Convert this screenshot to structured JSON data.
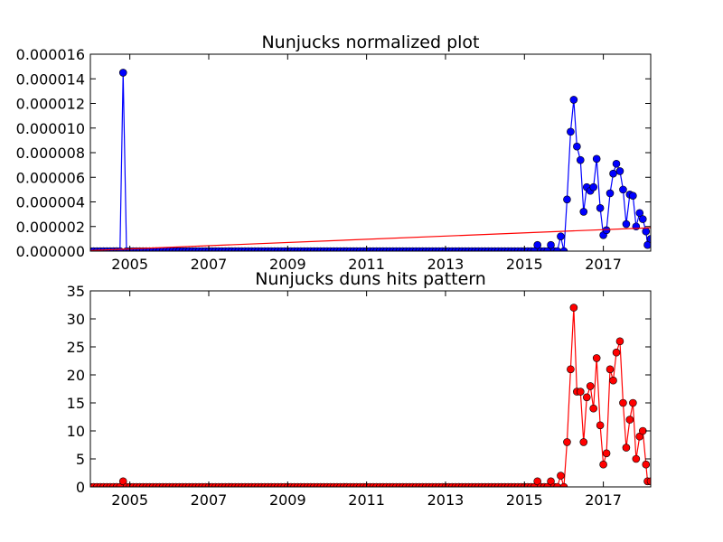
{
  "chart_data": [
    {
      "type": "line",
      "title": "Nunjucks normalized plot",
      "xlabel": "",
      "ylabel": "",
      "xlim": [
        2004.0,
        2018.2
      ],
      "ylim": [
        0,
        1.6e-05
      ],
      "x_ticks": [
        2005,
        2007,
        2009,
        2011,
        2013,
        2015,
        2017
      ],
      "x_tick_labels": [
        "2005",
        "2007",
        "2009",
        "2011",
        "2013",
        "2015",
        "2017"
      ],
      "y_ticks": [
        0,
        2e-06,
        4e-06,
        6e-06,
        8e-06,
        1e-05,
        1.2e-05,
        1.4e-05,
        1.6e-05
      ],
      "y_tick_labels": [
        "0.000000",
        "0.000002",
        "0.000004",
        "0.000006",
        "0.000008",
        "0.000010",
        "0.000012",
        "0.000014",
        "0.000016"
      ],
      "grid": false,
      "series": [
        {
          "color": "#0000ff",
          "marker": "circle",
          "spike_points": [
            [
              2004.83,
              1.45e-05
            ],
            [
              2015.33,
              5e-07
            ],
            [
              2015.67,
              5e-07
            ],
            [
              2015.92,
              1.2e-06
            ],
            [
              2016.08,
              4.2e-06
            ],
            [
              2016.17,
              9.7e-06
            ],
            [
              2016.25,
              1.23e-05
            ],
            [
              2016.33,
              8.5e-06
            ],
            [
              2016.42,
              7.4e-06
            ],
            [
              2016.5,
              3.2e-06
            ],
            [
              2016.58,
              5.2e-06
            ],
            [
              2016.67,
              4.9e-06
            ],
            [
              2016.75,
              5.2e-06
            ],
            [
              2016.83,
              7.5e-06
            ],
            [
              2016.92,
              3.5e-06
            ],
            [
              2017.0,
              1.3e-06
            ],
            [
              2017.08,
              1.7e-06
            ],
            [
              2017.17,
              4.7e-06
            ],
            [
              2017.25,
              6.3e-06
            ],
            [
              2017.33,
              7.1e-06
            ],
            [
              2017.42,
              6.5e-06
            ],
            [
              2017.5,
              5e-06
            ],
            [
              2017.58,
              2.2e-06
            ],
            [
              2017.67,
              4.6e-06
            ],
            [
              2017.75,
              4.5e-06
            ],
            [
              2017.83,
              2e-06
            ],
            [
              2017.92,
              3.1e-06
            ],
            [
              2018.0,
              2.6e-06
            ],
            [
              2018.08,
              1.6e-06
            ],
            [
              2018.12,
              5e-07
            ],
            [
              2018.2,
              1e-06
            ]
          ]
        },
        {
          "color": "#ff0000",
          "marker": "none",
          "trend_line": [
            [
              2004.0,
              5e-08
            ],
            [
              2018.2,
              1.9e-06
            ]
          ]
        }
      ]
    },
    {
      "type": "line",
      "title": "Nunjucks duns hits pattern",
      "xlabel": "",
      "ylabel": "",
      "xlim": [
        2004.0,
        2018.2
      ],
      "ylim": [
        0,
        35
      ],
      "x_ticks": [
        2005,
        2007,
        2009,
        2011,
        2013,
        2015,
        2017
      ],
      "x_tick_labels": [
        "2005",
        "2007",
        "2009",
        "2011",
        "2013",
        "2015",
        "2017"
      ],
      "y_ticks": [
        0,
        5,
        10,
        15,
        20,
        25,
        30,
        35
      ],
      "y_tick_labels": [
        "0",
        "5",
        "10",
        "15",
        "20",
        "25",
        "30",
        "35"
      ],
      "grid": false,
      "series": [
        {
          "color": "#ff0000",
          "marker": "circle",
          "spike_points": [
            [
              2004.83,
              1
            ],
            [
              2015.33,
              1
            ],
            [
              2015.67,
              1
            ],
            [
              2015.92,
              2
            ],
            [
              2016.08,
              8
            ],
            [
              2016.17,
              21
            ],
            [
              2016.25,
              32
            ],
            [
              2016.33,
              17
            ],
            [
              2016.42,
              17
            ],
            [
              2016.5,
              8
            ],
            [
              2016.58,
              16
            ],
            [
              2016.67,
              18
            ],
            [
              2016.75,
              14
            ],
            [
              2016.83,
              23
            ],
            [
              2016.92,
              11
            ],
            [
              2017.0,
              4
            ],
            [
              2017.08,
              6
            ],
            [
              2017.17,
              21
            ],
            [
              2017.25,
              19
            ],
            [
              2017.33,
              24
            ],
            [
              2017.42,
              26
            ],
            [
              2017.5,
              15
            ],
            [
              2017.58,
              7
            ],
            [
              2017.67,
              12
            ],
            [
              2017.75,
              15
            ],
            [
              2017.83,
              5
            ],
            [
              2017.92,
              9
            ],
            [
              2018.0,
              10
            ],
            [
              2018.08,
              4
            ],
            [
              2018.12,
              1
            ],
            [
              2018.2,
              1
            ]
          ]
        }
      ]
    }
  ]
}
